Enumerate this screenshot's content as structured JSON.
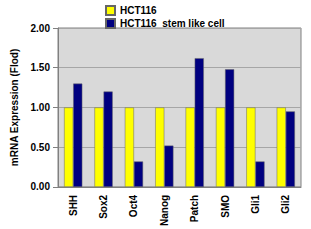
{
  "chart_data": {
    "type": "bar",
    "y_label": "mRNA Expression (Flod)",
    "categories": [
      "SHH",
      "Sox2",
      "Oct4",
      "Nanog",
      "Patch",
      "SMO",
      "Gli1",
      "Gli2"
    ],
    "series": [
      {
        "name": "HCT116",
        "color": "#ffff00",
        "values": [
          1.0,
          1.0,
          1.0,
          1.0,
          1.0,
          1.0,
          1.0,
          1.0
        ]
      },
      {
        "name": "HCT116  stem like cell",
        "color": "#000080",
        "values": [
          1.3,
          1.2,
          0.32,
          0.52,
          1.62,
          1.48,
          0.32,
          0.95
        ]
      }
    ],
    "ylim": [
      0,
      2
    ],
    "yticks": [
      {
        "value": 0,
        "label": "0.00"
      },
      {
        "value": 0.5,
        "label": "0.50"
      },
      {
        "value": 1,
        "label": "1.00"
      },
      {
        "value": 1.5,
        "label": "1.50"
      },
      {
        "value": 2,
        "label": "2.00"
      }
    ],
    "grid": true,
    "legend": "top-left"
  }
}
